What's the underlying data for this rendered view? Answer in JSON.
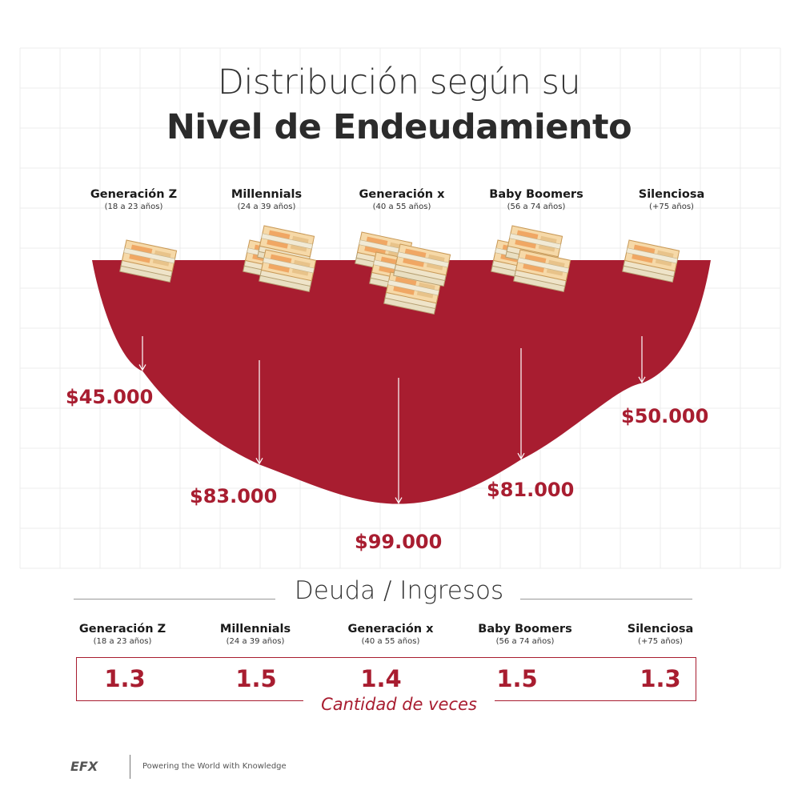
{
  "title": {
    "line1": "Distribución según su",
    "line2": "Nivel de Endeudamiento"
  },
  "chart_data": {
    "type": "area",
    "title": "Distribución según su Nivel de Endeudamiento",
    "categories": [
      "Generación Z",
      "Millennials",
      "Generación x",
      "Baby Boomers",
      "Silenciosa"
    ],
    "age_ranges": [
      "(18 a 23 años)",
      "(24 a 39 años)",
      "(40 a 55 años)",
      "(56 a 74 años)",
      "(+75 años)"
    ],
    "values": [
      45000,
      83000,
      99000,
      81000,
      50000
    ],
    "value_labels": [
      "$45.000",
      "$83.000",
      "$99.000",
      "$81.000",
      "$50.000"
    ],
    "ylim": [
      0,
      105000
    ],
    "grid": true,
    "color": "#a81d30"
  },
  "ratio": {
    "title": "Deuda / Ingresos",
    "values": [
      "1.3",
      "1.5",
      "1.4",
      "1.5",
      "1.3"
    ],
    "unit": "Cantidad de veces"
  },
  "footer": {
    "logo": "EFX",
    "tagline": "Powering the World with Knowledge"
  }
}
